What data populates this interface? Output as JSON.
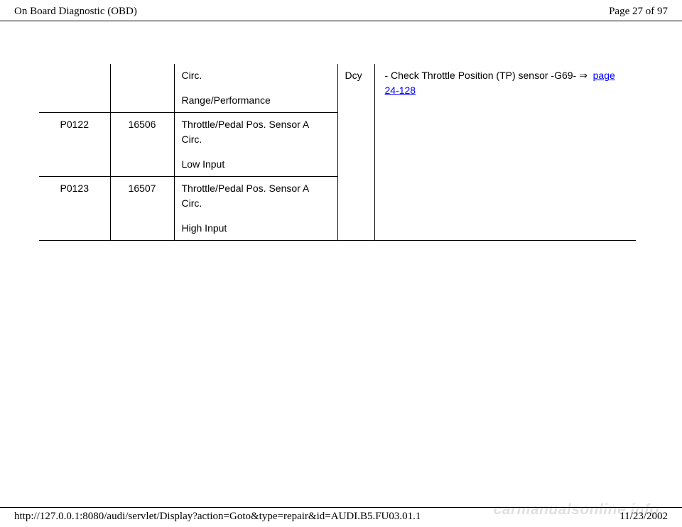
{
  "header": {
    "title": "On Board Diagnostic (OBD)",
    "page_info": "Page 27 of 97"
  },
  "table": {
    "rows": [
      {
        "code": "",
        "num": "",
        "desc_main": "Circ.",
        "desc_sub": "Range/Performance"
      },
      {
        "code": "P0122",
        "num": "16506",
        "desc_main": "Throttle/Pedal Pos. Sensor A Circ.",
        "desc_sub": "Low Input"
      },
      {
        "code": "P0123",
        "num": "16507",
        "desc_main": "Throttle/Pedal Pos. Sensor A Circ.",
        "desc_sub": "High Input"
      }
    ],
    "dcy_label": "Dcy",
    "action_prefix": "- Check Throttle Position (TP) sensor -G69-  ",
    "action_arrow": "⇒",
    "action_link": "page 24-128"
  },
  "footer": {
    "url": "http://127.0.0.1:8080/audi/servlet/Display?action=Goto&type=repair&id=AUDI.B5.FU03.01.1",
    "date": "11/23/2002"
  },
  "watermark": "carmanualsonline.info"
}
